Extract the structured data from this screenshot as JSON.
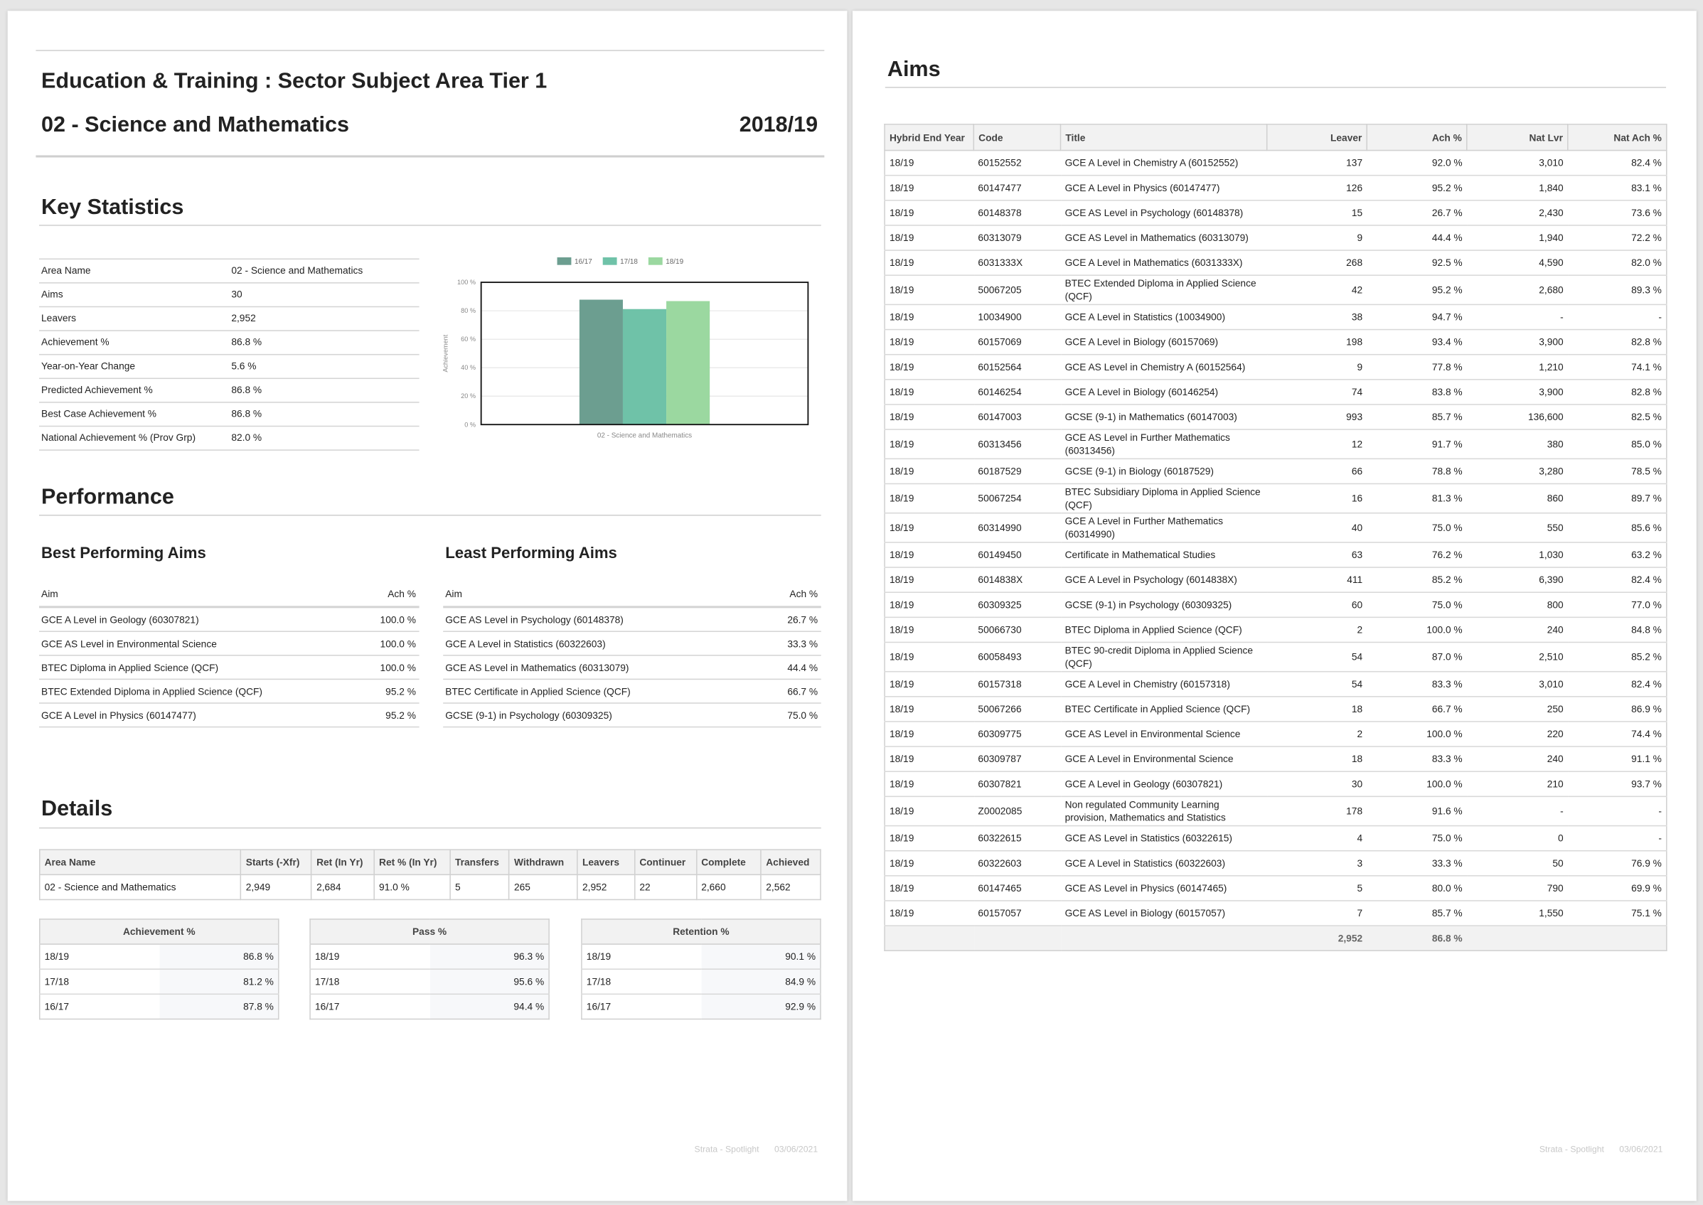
{
  "header": {
    "title": "Education & Training : Sector Subject Area Tier 1",
    "subtitle": "02 - Science and Mathematics",
    "year": "2018/19"
  },
  "key_statistics": {
    "heading": "Key Statistics",
    "rows": [
      [
        "Area Name",
        "02 - Science and Mathematics"
      ],
      [
        "Aims",
        "30"
      ],
      [
        "Leavers",
        "2,952"
      ],
      [
        "Achievement %",
        "86.8 %"
      ],
      [
        "Year-on-Year Change",
        "5.6 %"
      ],
      [
        "Predicted Achievement %",
        "86.8 %"
      ],
      [
        "Best Case Achievement %",
        "86.8 %"
      ],
      [
        "National Achievement % (Prov Grp)",
        "82.0 %"
      ]
    ]
  },
  "chart_data": {
    "type": "bar",
    "y_label": "Achievement",
    "categories": [
      "02 - Science and Mathematics"
    ],
    "series": [
      {
        "name": "16/17",
        "color": "#6c9e90",
        "values": [
          87.8
        ]
      },
      {
        "name": "17/18",
        "color": "#6fc2a8",
        "values": [
          81.2
        ]
      },
      {
        "name": "18/19",
        "color": "#9bd8a0",
        "values": [
          86.8
        ]
      }
    ],
    "ylim": [
      0,
      100
    ],
    "yticks": [
      {
        "value": 0,
        "label": "0 %"
      },
      {
        "value": 20,
        "label": "20 %"
      },
      {
        "value": 40,
        "label": "40 %"
      },
      {
        "value": 60,
        "label": "60 %"
      },
      {
        "value": 80,
        "label": "80 %"
      },
      {
        "value": 100,
        "label": "100 %"
      }
    ],
    "grid": true
  },
  "performance": {
    "heading": "Performance",
    "best": {
      "title": "Best Performing Aims",
      "columns": [
        "Aim",
        "Ach %"
      ],
      "rows": [
        [
          "GCE A Level in Geology (60307821)",
          "100.0 %"
        ],
        [
          "GCE AS Level in Environmental Science",
          "100.0 %"
        ],
        [
          "BTEC Diploma in Applied Science (QCF)",
          "100.0 %"
        ],
        [
          "BTEC Extended Diploma in Applied Science (QCF)",
          "95.2 %"
        ],
        [
          "GCE A Level in Physics (60147477)",
          "95.2 %"
        ]
      ]
    },
    "least": {
      "title": "Least Performing Aims",
      "columns": [
        "Aim",
        "Ach %"
      ],
      "rows": [
        [
          "GCE AS Level in Psychology (60148378)",
          "26.7 %"
        ],
        [
          "GCE A Level in Statistics (60322603)",
          "33.3 %"
        ],
        [
          "GCE AS Level in Mathematics (60313079)",
          "44.4 %"
        ],
        [
          "BTEC Certificate in Applied Science (QCF)",
          "66.7 %"
        ],
        [
          "GCSE (9-1) in Psychology (60309325)",
          "75.0 %"
        ]
      ]
    }
  },
  "details": {
    "heading": "Details",
    "columns": [
      "Area Name",
      "Starts (-Xfr)",
      "Ret (In Yr)",
      "Ret % (In Yr)",
      "Transfers",
      "Withdrawn",
      "Leavers",
      "Continuer",
      "Complete",
      "Achieved"
    ],
    "rows": [
      [
        "02 - Science and Mathematics",
        "2,949",
        "2,684",
        "91.0 %",
        "5",
        "265",
        "2,952",
        "22",
        "2,660",
        "2,562"
      ]
    ],
    "summaries": [
      {
        "title": "Achievement %",
        "rows": [
          [
            "18/19",
            "86.8 %"
          ],
          [
            "17/18",
            "81.2 %"
          ],
          [
            "16/17",
            "87.8 %"
          ]
        ]
      },
      {
        "title": "Pass %",
        "rows": [
          [
            "18/19",
            "96.3 %"
          ],
          [
            "17/18",
            "95.6 %"
          ],
          [
            "16/17",
            "94.4 %"
          ]
        ]
      },
      {
        "title": "Retention %",
        "rows": [
          [
            "18/19",
            "90.1 %"
          ],
          [
            "17/18",
            "84.9 %"
          ],
          [
            "16/17",
            "92.9 %"
          ]
        ]
      }
    ]
  },
  "aims": {
    "heading": "Aims",
    "columns": [
      "Hybrid End Year",
      "Code",
      "Title",
      "Leaver",
      "Ach %",
      "Nat Lvr",
      "Nat Ach %"
    ],
    "rows": [
      [
        "18/19",
        "60152552",
        "GCE A Level in Chemistry A (60152552)",
        "137",
        "92.0 %",
        "3,010",
        "82.4 %"
      ],
      [
        "18/19",
        "60147477",
        "GCE A Level in Physics (60147477)",
        "126",
        "95.2 %",
        "1,840",
        "83.1 %"
      ],
      [
        "18/19",
        "60148378",
        "GCE AS Level in Psychology (60148378)",
        "15",
        "26.7 %",
        "2,430",
        "73.6 %"
      ],
      [
        "18/19",
        "60313079",
        "GCE AS Level in Mathematics (60313079)",
        "9",
        "44.4 %",
        "1,940",
        "72.2 %"
      ],
      [
        "18/19",
        "6031333X",
        "GCE A Level in Mathematics (6031333X)",
        "268",
        "92.5 %",
        "4,590",
        "82.0 %"
      ],
      [
        "18/19",
        "50067205",
        "BTEC Extended Diploma in Applied Science (QCF)",
        "42",
        "95.2 %",
        "2,680",
        "89.3 %"
      ],
      [
        "18/19",
        "10034900",
        "GCE A Level in Statistics (10034900)",
        "38",
        "94.7 %",
        "-",
        "-"
      ],
      [
        "18/19",
        "60157069",
        "GCE A Level in Biology (60157069)",
        "198",
        "93.4 %",
        "3,900",
        "82.8 %"
      ],
      [
        "18/19",
        "60152564",
        "GCE AS Level in Chemistry A (60152564)",
        "9",
        "77.8 %",
        "1,210",
        "74.1 %"
      ],
      [
        "18/19",
        "60146254",
        "GCE A Level in Biology (60146254)",
        "74",
        "83.8 %",
        "3,900",
        "82.8 %"
      ],
      [
        "18/19",
        "60147003",
        "GCSE (9-1) in Mathematics (60147003)",
        "993",
        "85.7 %",
        "136,600",
        "82.5 %"
      ],
      [
        "18/19",
        "60313456",
        "GCE AS Level in Further Mathematics (60313456)",
        "12",
        "91.7 %",
        "380",
        "85.0 %"
      ],
      [
        "18/19",
        "60187529",
        "GCSE (9-1) in Biology (60187529)",
        "66",
        "78.8 %",
        "3,280",
        "78.5 %"
      ],
      [
        "18/19",
        "50067254",
        "BTEC Subsidiary Diploma in Applied Science (QCF)",
        "16",
        "81.3 %",
        "860",
        "89.7 %"
      ],
      [
        "18/19",
        "60314990",
        "GCE A Level in Further Mathematics (60314990)",
        "40",
        "75.0 %",
        "550",
        "85.6 %"
      ],
      [
        "18/19",
        "60149450",
        "Certificate in Mathematical Studies",
        "63",
        "76.2 %",
        "1,030",
        "63.2 %"
      ],
      [
        "18/19",
        "6014838X",
        "GCE A Level in Psychology (6014838X)",
        "411",
        "85.2 %",
        "6,390",
        "82.4 %"
      ],
      [
        "18/19",
        "60309325",
        "GCSE (9-1) in Psychology (60309325)",
        "60",
        "75.0 %",
        "800",
        "77.0 %"
      ],
      [
        "18/19",
        "50066730",
        "BTEC Diploma in Applied Science (QCF)",
        "2",
        "100.0 %",
        "240",
        "84.8 %"
      ],
      [
        "18/19",
        "60058493",
        "BTEC 90-credit Diploma in Applied Science (QCF)",
        "54",
        "87.0 %",
        "2,510",
        "85.2 %"
      ],
      [
        "18/19",
        "60157318",
        "GCE A Level in Chemistry (60157318)",
        "54",
        "83.3 %",
        "3,010",
        "82.4 %"
      ],
      [
        "18/19",
        "50067266",
        "BTEC Certificate in Applied Science (QCF)",
        "18",
        "66.7 %",
        "250",
        "86.9 %"
      ],
      [
        "18/19",
        "60309775",
        "GCE AS Level in Environmental Science",
        "2",
        "100.0 %",
        "220",
        "74.4 %"
      ],
      [
        "18/19",
        "60309787",
        "GCE A Level in Environmental Science",
        "18",
        "83.3 %",
        "240",
        "91.1 %"
      ],
      [
        "18/19",
        "60307821",
        "GCE A Level in Geology (60307821)",
        "30",
        "100.0 %",
        "210",
        "93.7 %"
      ],
      [
        "18/19",
        "Z0002085",
        "Non regulated Community Learning provision, Mathematics and Statistics",
        "178",
        "91.6 %",
        "-",
        "-"
      ],
      [
        "18/19",
        "60322615",
        "GCE AS Level in Statistics (60322615)",
        "4",
        "75.0 %",
        "0",
        "-"
      ],
      [
        "18/19",
        "60322603",
        "GCE A Level in Statistics (60322603)",
        "3",
        "33.3 %",
        "50",
        "76.9 %"
      ],
      [
        "18/19",
        "60147465",
        "GCE AS Level in Physics (60147465)",
        "5",
        "80.0 %",
        "790",
        "69.9 %"
      ],
      [
        "18/19",
        "60157057",
        "GCE AS Level in Biology (60157057)",
        "7",
        "85.7 %",
        "1,550",
        "75.1 %"
      ]
    ],
    "totals": {
      "leaver": "2,952",
      "ach": "86.8 %"
    }
  },
  "footer": {
    "source": "Strata - Spotlight",
    "date": "03/06/2021"
  }
}
